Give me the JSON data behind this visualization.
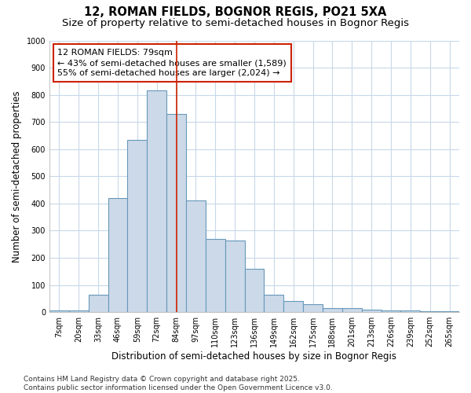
{
  "title": "12, ROMAN FIELDS, BOGNOR REGIS, PO21 5XA",
  "subtitle": "Size of property relative to semi-detached houses in Bognor Regis",
  "xlabel": "Distribution of semi-detached houses by size in Bognor Regis",
  "ylabel": "Number of semi-detached properties",
  "categories": [
    "7sqm",
    "20sqm",
    "33sqm",
    "46sqm",
    "59sqm",
    "72sqm",
    "84sqm",
    "97sqm",
    "110sqm",
    "123sqm",
    "136sqm",
    "149sqm",
    "162sqm",
    "175sqm",
    "188sqm",
    "201sqm",
    "213sqm",
    "226sqm",
    "239sqm",
    "252sqm",
    "265sqm"
  ],
  "values": [
    5,
    5,
    65,
    420,
    635,
    815,
    730,
    410,
    270,
    265,
    160,
    65,
    42,
    28,
    15,
    15,
    8,
    5,
    5,
    3,
    3
  ],
  "bar_color": "#ccd9e8",
  "bar_edge_color": "#6699bb",
  "vline_x": 6.0,
  "vline_color": "#cc2200",
  "annotation_line1": "12 ROMAN FIELDS: 79sqm",
  "annotation_line2": "← 43% of semi-detached houses are smaller (1,589)",
  "annotation_line3": "55% of semi-detached houses are larger (2,024) →",
  "annotation_box_color": "white",
  "annotation_box_edge_color": "#cc2200",
  "ylim": [
    0,
    1000
  ],
  "yticks": [
    0,
    100,
    200,
    300,
    400,
    500,
    600,
    700,
    800,
    900,
    1000
  ],
  "footnote": "Contains HM Land Registry data © Crown copyright and database right 2025.\nContains public sector information licensed under the Open Government Licence v3.0.",
  "bg_color": "#ffffff",
  "plot_bg_color": "#ffffff",
  "grid_color": "#c8d8e8",
  "title_fontsize": 10.5,
  "subtitle_fontsize": 9.5,
  "label_fontsize": 8.5,
  "tick_fontsize": 7,
  "footnote_fontsize": 6.5,
  "annot_fontsize": 8
}
